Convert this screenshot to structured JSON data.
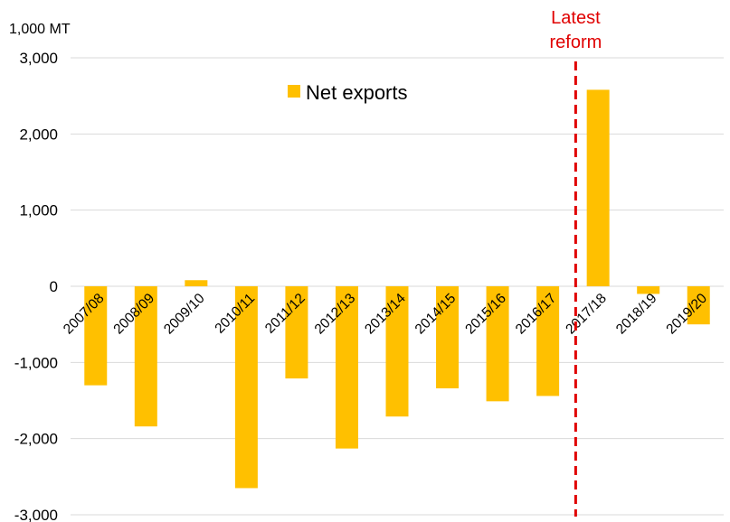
{
  "chart_data": {
    "type": "bar",
    "unit_label": "1,000 MT",
    "categories": [
      "2007/08",
      "2008/09",
      "2009/10",
      "2010/11",
      "2011/12",
      "2012/13",
      "2013/14",
      "2014/15",
      "2015/16",
      "2016/17",
      "2017/18",
      "2018/19",
      "2019/20"
    ],
    "series": [
      {
        "name": "Net exports",
        "color": "#FFC000",
        "values": [
          -1300,
          -1840,
          80,
          -2650,
          -1210,
          -2130,
          -1710,
          -1340,
          -1510,
          -1440,
          2580,
          -100,
          -500
        ]
      }
    ],
    "ylim": [
      -3000,
      3000
    ],
    "yticks": [
      -3000,
      -2000,
      -1000,
      0,
      1000,
      2000,
      3000
    ],
    "ytick_labels": [
      "-3,000",
      "-2,000",
      "-1,000",
      "0",
      "1,000",
      "2,000",
      "3,000"
    ],
    "grid": true,
    "legend_position": "top-center",
    "annotation": {
      "lines": [
        "Latest",
        "reform"
      ],
      "color": "#E00000",
      "between_categories": [
        "2016/17",
        "2017/18"
      ],
      "style": "dashed"
    }
  }
}
